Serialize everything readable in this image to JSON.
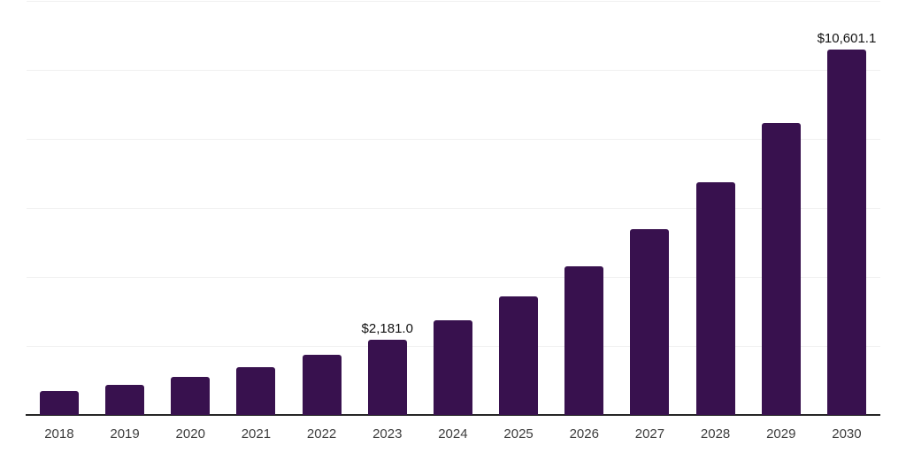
{
  "chart_data": {
    "type": "bar",
    "title": "",
    "xlabel": "",
    "ylabel": "",
    "categories": [
      "2018",
      "2019",
      "2020",
      "2021",
      "2022",
      "2023",
      "2024",
      "2025",
      "2026",
      "2027",
      "2028",
      "2029",
      "2030"
    ],
    "values": [
      704,
      882,
      1106,
      1387,
      1738,
      2181.0,
      2734,
      3427,
      4296,
      5385,
      6750,
      8462,
      10601.1
    ],
    "bar_labels": [
      "",
      "",
      "",
      "",
      "",
      "$2,181.0",
      "",
      "",
      "",
      "",
      "",
      "",
      "$10,601.1"
    ],
    "ylim": [
      0,
      12000
    ],
    "gridline_values": [
      2000,
      4000,
      6000,
      8000,
      10000,
      12000
    ],
    "grid": true,
    "legend": false,
    "y_axis_labels_visible": false,
    "colors": {
      "bar": "#38114e",
      "axis_line": "#262626",
      "gridline": "#f0f0f0",
      "tick_label": "#3d3d3d",
      "data_label": "#111111",
      "background": "#ffffff"
    }
  }
}
